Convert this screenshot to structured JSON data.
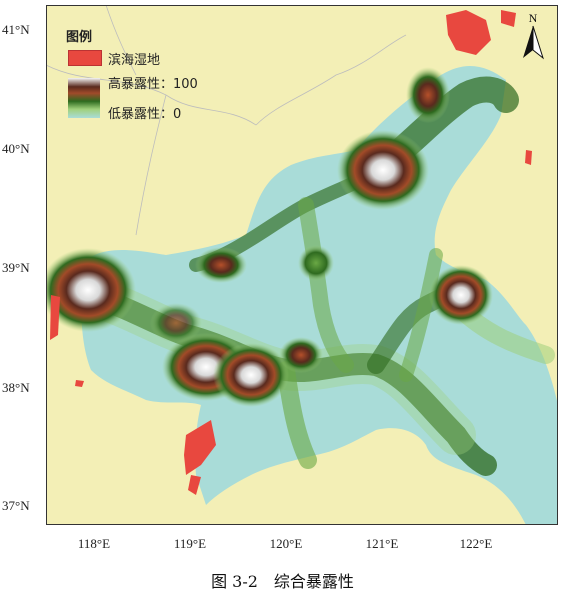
{
  "map": {
    "lat_ticks": [
      "41°N",
      "40°N",
      "39°N",
      "38°N",
      "37°N"
    ],
    "lon_ticks": [
      "118°E",
      "119°E",
      "120°E",
      "121°E",
      "122°E"
    ],
    "north_label": "N"
  },
  "legend": {
    "title": "图例",
    "wetland_label": "滨海湿地",
    "high_label": "高暴露性：100",
    "low_label": "低暴露性：0"
  },
  "caption": "图 3-2　综合暴露性",
  "colors": {
    "land": "#f3efb6",
    "sea": "#a9dcd8",
    "wetland": "#e8483f",
    "high": "#5a2a1e",
    "mid": "#2e6a1f"
  }
}
